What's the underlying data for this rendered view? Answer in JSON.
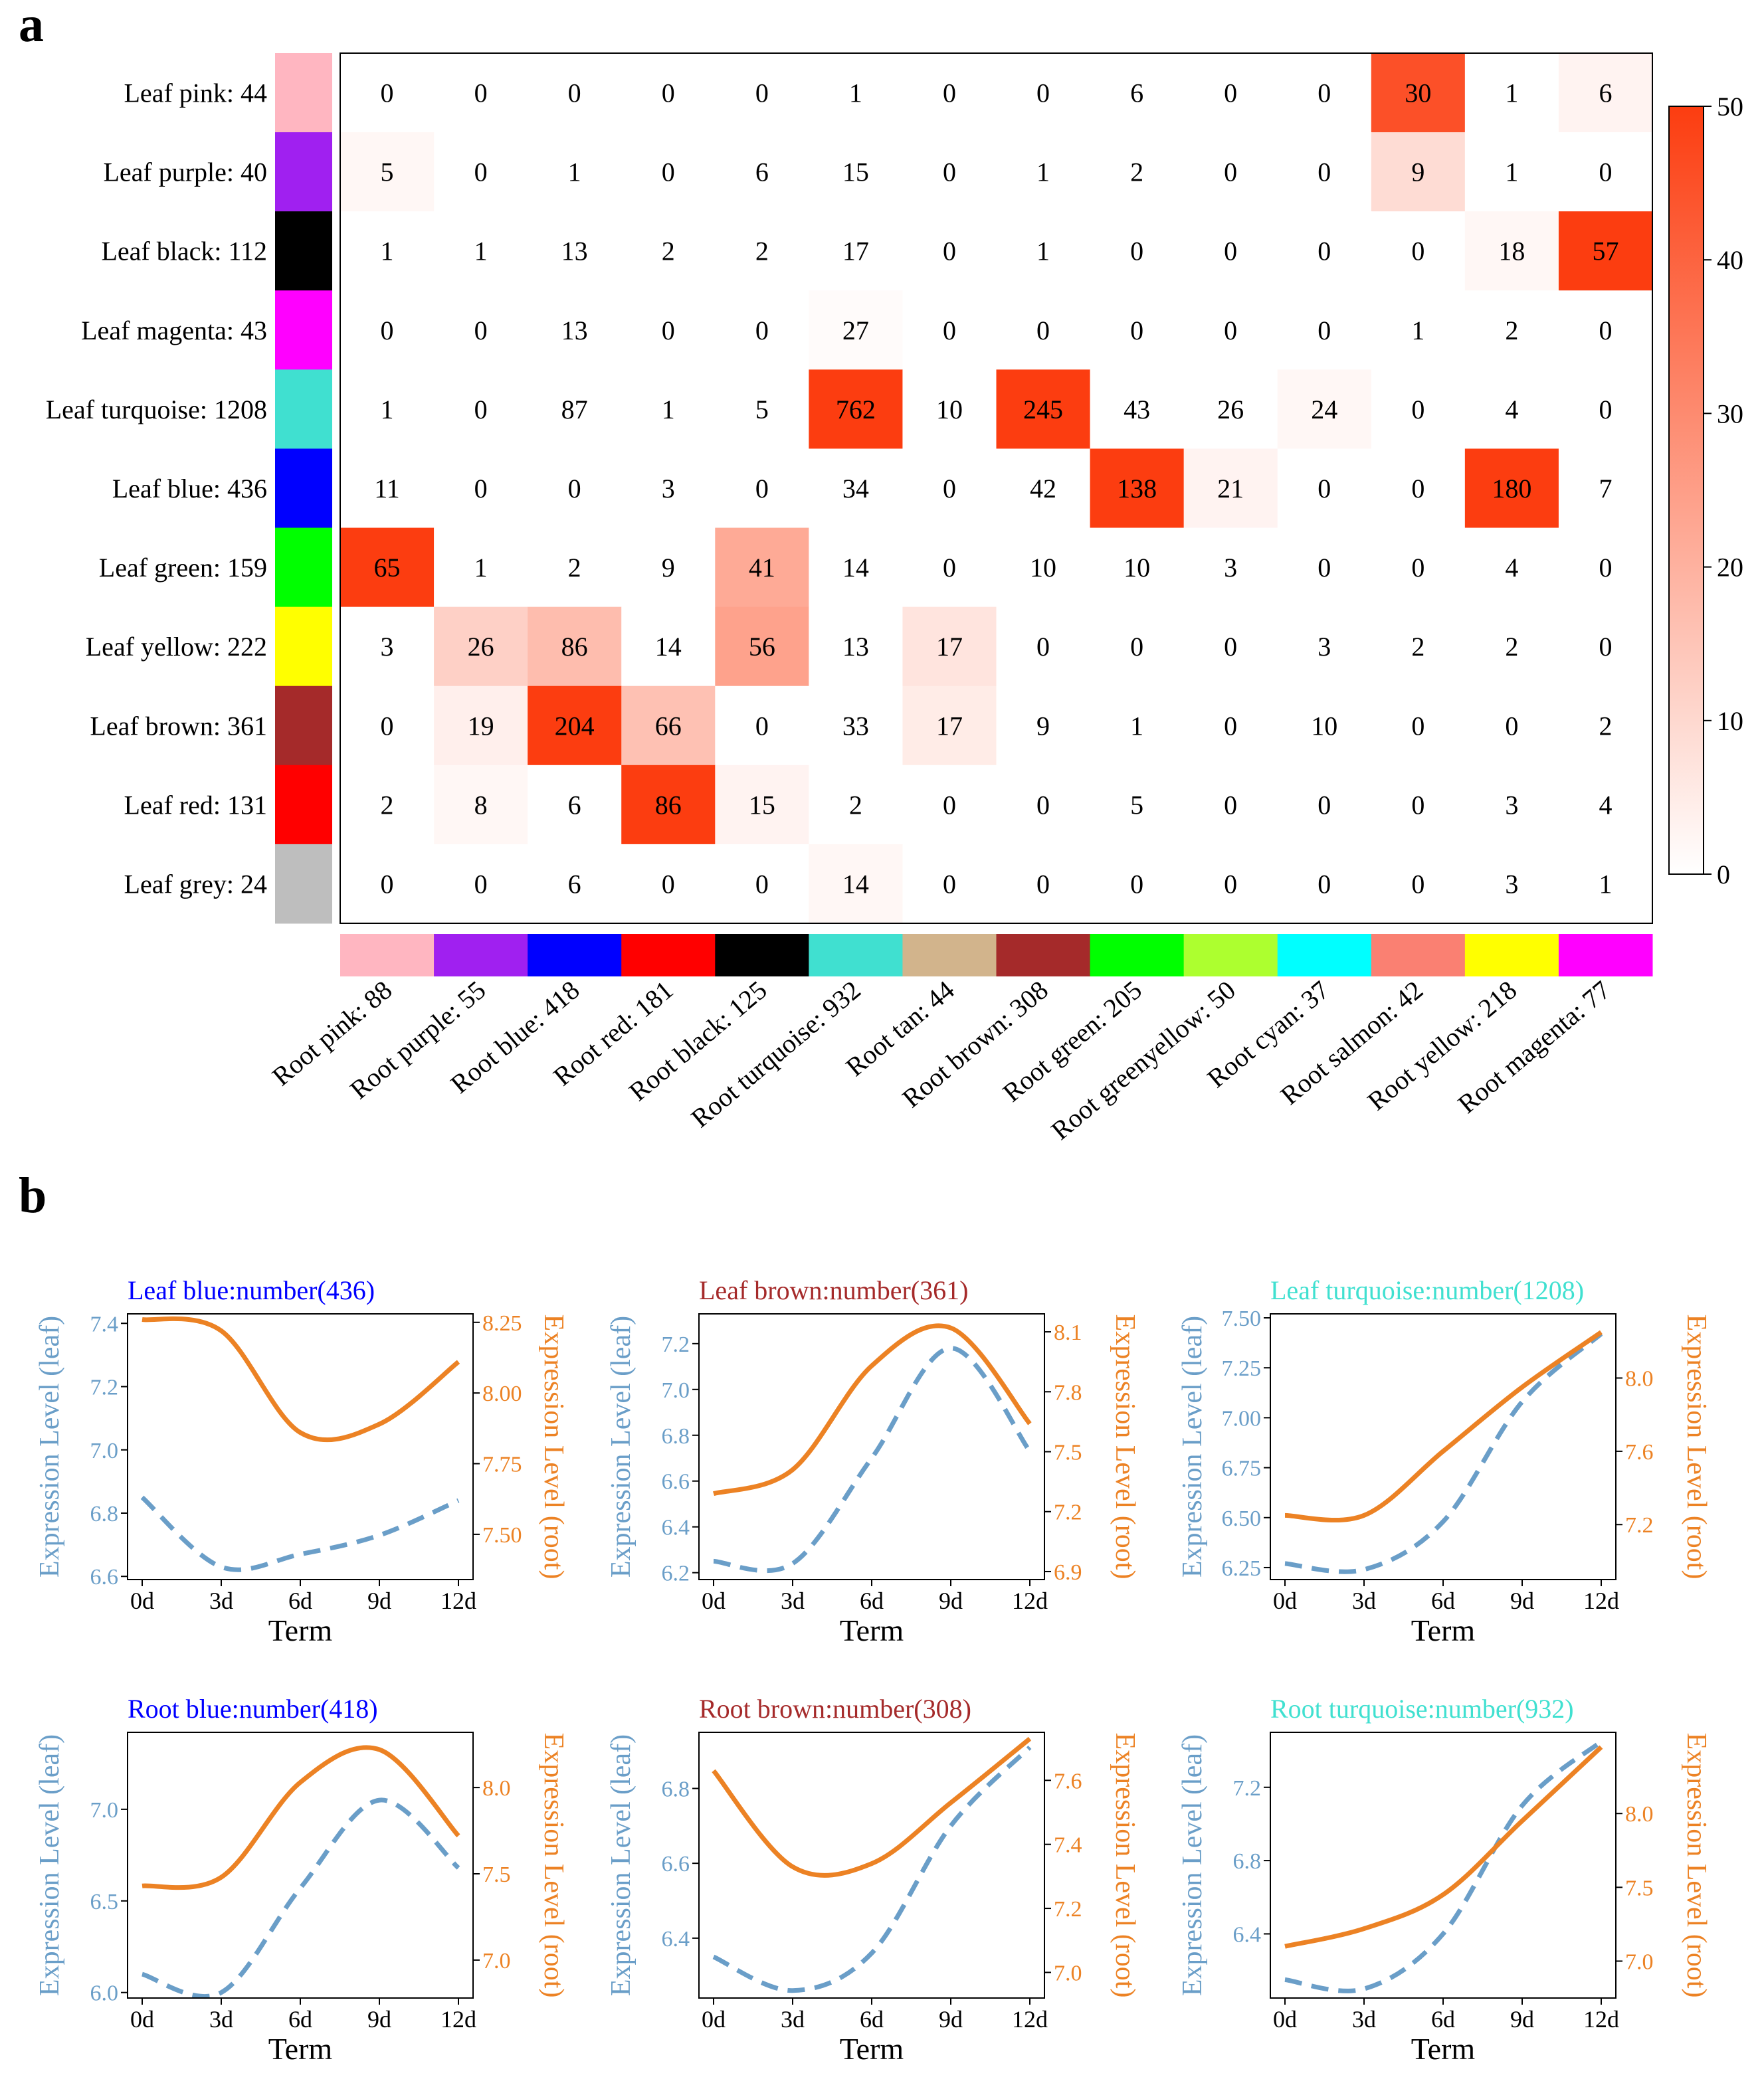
{
  "panel_labels": {
    "a": "a",
    "b": "b"
  },
  "colors": {
    "pink": "#ffb6c1",
    "purple": "#a020f0",
    "blue": "#0000ff",
    "red": "#ff0000",
    "black": "#000000",
    "turquoise": "#40e0d0",
    "tan": "#d2b48c",
    "brown": "#a52a2a",
    "green": "#00ff00",
    "greenyellow": "#adff2f",
    "cyan": "#00ffff",
    "salmon": "#fa8072",
    "yellow": "#ffff00",
    "magenta": "#ff00ff",
    "grey": "#bebebe",
    "heat_high": "#fc3d10",
    "leaf_line": "#6a9ec8",
    "root_line": "#ec8224"
  },
  "chart_data": [
    {
      "type": "heatmap",
      "title": "",
      "row_labels": [
        "Leaf pink: 44",
        "Leaf purple: 40",
        "Leaf black: 112",
        "Leaf magenta: 43",
        "Leaf turquoise: 1208",
        "Leaf blue: 436",
        "Leaf green: 159",
        "Leaf yellow: 222",
        "Leaf brown: 361",
        "Leaf red: 131",
        "Leaf grey: 24"
      ],
      "row_colors": [
        "pink",
        "purple",
        "black",
        "magenta",
        "turquoise",
        "blue",
        "green",
        "yellow",
        "brown",
        "red",
        "grey"
      ],
      "col_labels": [
        "Root pink: 88",
        "Root purple: 55",
        "Root blue: 418",
        "Root red: 181",
        "Root black: 125",
        "Root turquoise: 932",
        "Root tan: 44",
        "Root brown: 308",
        "Root green: 205",
        "Root greenyellow: 50",
        "Root cyan: 37",
        "Root salmon: 42",
        "Root yellow: 218",
        "Root magenta: 77"
      ],
      "col_colors": [
        "pink",
        "purple",
        "blue",
        "red",
        "black",
        "turquoise",
        "tan",
        "brown",
        "green",
        "greenyellow",
        "cyan",
        "salmon",
        "yellow",
        "magenta"
      ],
      "values": [
        [
          0,
          0,
          0,
          0,
          0,
          1,
          0,
          0,
          6,
          0,
          0,
          30,
          1,
          6
        ],
        [
          5,
          0,
          1,
          0,
          6,
          15,
          0,
          1,
          2,
          0,
          0,
          9,
          1,
          0
        ],
        [
          1,
          1,
          13,
          2,
          2,
          17,
          0,
          1,
          0,
          0,
          0,
          0,
          18,
          57
        ],
        [
          0,
          0,
          13,
          0,
          0,
          27,
          0,
          0,
          0,
          0,
          0,
          1,
          2,
          0
        ],
        [
          1,
          0,
          87,
          1,
          5,
          762,
          10,
          245,
          43,
          26,
          24,
          0,
          4,
          0
        ],
        [
          11,
          0,
          0,
          3,
          0,
          34,
          0,
          42,
          138,
          21,
          0,
          0,
          180,
          7
        ],
        [
          65,
          1,
          2,
          9,
          41,
          14,
          0,
          10,
          10,
          3,
          0,
          0,
          4,
          0
        ],
        [
          3,
          26,
          86,
          14,
          56,
          13,
          17,
          0,
          0,
          0,
          3,
          2,
          2,
          0
        ],
        [
          0,
          19,
          204,
          66,
          0,
          33,
          17,
          9,
          1,
          0,
          10,
          0,
          0,
          2
        ],
        [
          2,
          8,
          6,
          86,
          15,
          2,
          0,
          0,
          5,
          0,
          0,
          0,
          3,
          4
        ],
        [
          0,
          0,
          6,
          0,
          0,
          14,
          0,
          0,
          0,
          0,
          0,
          0,
          3,
          1
        ]
      ],
      "cell_shading": [
        [
          0,
          0,
          0,
          0,
          0,
          0,
          0,
          0,
          0,
          0,
          0,
          45,
          0,
          3
        ],
        [
          2,
          0,
          0,
          0,
          0,
          0,
          0,
          0,
          0,
          0,
          0,
          9,
          0,
          0
        ],
        [
          0,
          0,
          0,
          0,
          0,
          0,
          0,
          0,
          0,
          0,
          0,
          0,
          2,
          50
        ],
        [
          0,
          0,
          0,
          0,
          0,
          1,
          0,
          0,
          0,
          0,
          0,
          0,
          0,
          0
        ],
        [
          0,
          0,
          0,
          0,
          0,
          50,
          0,
          50,
          0,
          0,
          2,
          0,
          0,
          0
        ],
        [
          0,
          0,
          0,
          0,
          0,
          0,
          0,
          0,
          50,
          3,
          0,
          0,
          50,
          0
        ],
        [
          50,
          0,
          0,
          0,
          22,
          0,
          0,
          0,
          0,
          0,
          0,
          0,
          0,
          0
        ],
        [
          0,
          12,
          17,
          0,
          24,
          0,
          7,
          0,
          0,
          0,
          0,
          0,
          0,
          0
        ],
        [
          0,
          4,
          50,
          16,
          0,
          0,
          5,
          0,
          0,
          0,
          0,
          0,
          0,
          0
        ],
        [
          0,
          2,
          0,
          50,
          3,
          0,
          0,
          0,
          0,
          0,
          0,
          0,
          0,
          0
        ],
        [
          0,
          0,
          0,
          0,
          0,
          2,
          0,
          0,
          0,
          0,
          0,
          0,
          0,
          0
        ]
      ],
      "colorbar": {
        "min": 0,
        "max": 50,
        "ticks": [
          "0",
          "10",
          "20",
          "30",
          "40",
          "50"
        ]
      }
    },
    {
      "type": "line",
      "title": "Leaf blue:number(436)",
      "title_color": "blue",
      "xlabel": "Term",
      "ylabel_left": "Expression Level (leaf)",
      "ylabel_right": "Expression Level (root)",
      "x": [
        "0d",
        "3d",
        "6d",
        "9d",
        "12d"
      ],
      "left": {
        "ylim": [
          6.59,
          7.43
        ],
        "ticks": [
          "6.6",
          "6.8",
          "7.0",
          "7.2",
          "7.4"
        ],
        "values": [
          6.85,
          6.63,
          6.67,
          6.73,
          6.84
        ]
      },
      "right": {
        "ylim": [
          7.34,
          8.28
        ],
        "ticks": [
          "7.50",
          "7.75",
          "8.00",
          "8.25"
        ],
        "values": [
          8.26,
          8.22,
          7.86,
          7.89,
          8.11
        ]
      },
      "series": [
        {
          "name": "leaf",
          "style": "dashed"
        },
        {
          "name": "root",
          "style": "solid"
        }
      ]
    },
    {
      "type": "line",
      "title": "Leaf brown:number(361)",
      "title_color": "brown",
      "xlabel": "Term",
      "ylabel_left": "Expression Level (leaf)",
      "ylabel_right": "Expression Level (root)",
      "x": [
        "0d",
        "3d",
        "6d",
        "9d",
        "12d"
      ],
      "left": {
        "ylim": [
          6.17,
          7.33
        ],
        "ticks": [
          "6.2",
          "6.4",
          "6.6",
          "6.8",
          "7.0",
          "7.2"
        ],
        "values": [
          6.25,
          6.24,
          6.7,
          7.18,
          6.73
        ]
      },
      "right": {
        "ylim": [
          6.86,
          8.19
        ],
        "ticks": [
          "6.9",
          "7.2",
          "7.5",
          "7.8",
          "8.1"
        ],
        "values": [
          7.29,
          7.41,
          7.93,
          8.12,
          7.64
        ]
      },
      "series": [
        {
          "name": "leaf",
          "style": "dashed"
        },
        {
          "name": "root",
          "style": "solid"
        }
      ]
    },
    {
      "type": "line",
      "title": "Leaf turquoise:number(1208)",
      "title_color": "turquoise",
      "xlabel": "Term",
      "ylabel_left": "Expression Level (leaf)",
      "ylabel_right": "Expression Level (root)",
      "x": [
        "0d",
        "3d",
        "6d",
        "9d",
        "12d"
      ],
      "left": {
        "ylim": [
          6.19,
          7.52
        ],
        "ticks": [
          "6.25",
          "6.50",
          "6.75",
          "7.00",
          "7.25",
          "7.50"
        ],
        "values": [
          6.27,
          6.24,
          6.48,
          7.08,
          7.42
        ]
      },
      "right": {
        "ylim": [
          6.9,
          8.35
        ],
        "ticks": [
          "7.2",
          "7.6",
          "8.0"
        ],
        "values": [
          7.25,
          7.25,
          7.6,
          7.95,
          8.25
        ]
      },
      "series": [
        {
          "name": "leaf",
          "style": "dashed"
        },
        {
          "name": "root",
          "style": "solid"
        }
      ]
    },
    {
      "type": "line",
      "title": "Root blue:number(418)",
      "title_color": "blue",
      "xlabel": "Term",
      "ylabel_left": "Expression Level (leaf)",
      "ylabel_right": "Expression Level (root)",
      "x": [
        "0d",
        "3d",
        "6d",
        "9d",
        "12d"
      ],
      "left": {
        "ylim": [
          5.97,
          7.42
        ],
        "ticks": [
          "6.0",
          "6.5",
          "7.0"
        ],
        "values": [
          6.1,
          6.0,
          6.57,
          7.05,
          6.68
        ]
      },
      "right": {
        "ylim": [
          6.78,
          8.32
        ],
        "ticks": [
          "7.0",
          "7.5",
          "8.0"
        ],
        "values": [
          7.43,
          7.48,
          8.03,
          8.22,
          7.72
        ]
      },
      "series": [
        {
          "name": "leaf",
          "style": "dashed"
        },
        {
          "name": "root",
          "style": "solid"
        }
      ]
    },
    {
      "type": "line",
      "title": "Root brown:number(308)",
      "title_color": "brown",
      "xlabel": "Term",
      "ylabel_left": "Expression Level (leaf)",
      "ylabel_right": "Expression Level (root)",
      "x": [
        "0d",
        "3d",
        "6d",
        "9d",
        "12d"
      ],
      "left": {
        "ylim": [
          6.24,
          6.95
        ],
        "ticks": [
          "6.4",
          "6.6",
          "6.8"
        ],
        "values": [
          6.35,
          6.26,
          6.36,
          6.7,
          6.91
        ]
      },
      "right": {
        "ylim": [
          6.92,
          7.75
        ],
        "ticks": [
          "7.0",
          "7.2",
          "7.4",
          "7.6"
        ],
        "values": [
          7.63,
          7.33,
          7.34,
          7.53,
          7.73
        ]
      },
      "series": [
        {
          "name": "leaf",
          "style": "dashed"
        },
        {
          "name": "root",
          "style": "solid"
        }
      ]
    },
    {
      "type": "line",
      "title": "Root turquoise:number(932)",
      "title_color": "turquoise",
      "xlabel": "Term",
      "ylabel_left": "Expression Level (leaf)",
      "ylabel_right": "Expression Level (root)",
      "x": [
        "0d",
        "3d",
        "6d",
        "9d",
        "12d"
      ],
      "left": {
        "ylim": [
          6.05,
          7.5
        ],
        "ticks": [
          "6.4",
          "6.8",
          "7.2"
        ],
        "values": [
          6.15,
          6.1,
          6.4,
          7.1,
          7.45
        ]
      },
      "right": {
        "ylim": [
          6.75,
          8.55
        ],
        "ticks": [
          "7.0",
          "7.5",
          "8.0"
        ],
        "values": [
          7.1,
          7.22,
          7.45,
          7.95,
          8.45
        ]
      },
      "series": [
        {
          "name": "leaf",
          "style": "dashed"
        },
        {
          "name": "root",
          "style": "solid"
        }
      ]
    }
  ]
}
